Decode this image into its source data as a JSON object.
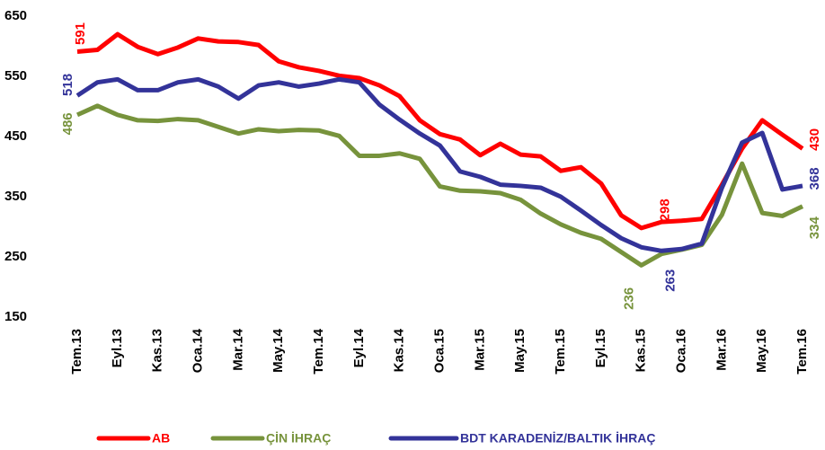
{
  "chart_data": {
    "type": "line",
    "categories": [
      "Tem.13",
      null,
      "Eyl.13",
      null,
      "Kas.13",
      null,
      "Oca.14",
      null,
      "Mar.14",
      null,
      "May.14",
      null,
      "Tem.14",
      null,
      "Eyl.14",
      null,
      "Kas.14",
      null,
      "Oca.15",
      null,
      "Mar.15",
      null,
      "May.15",
      null,
      "Tem.15",
      null,
      "Eyl.15",
      null,
      "Kas.15",
      null,
      "Oca.16",
      null,
      "Mar.16",
      null,
      "May.16",
      null,
      "Tem.16"
    ],
    "series": [
      {
        "name": "AB",
        "color": "#ff0000",
        "values": [
          591,
          594,
          620,
          599,
          587,
          598,
          613,
          608,
          607,
          602,
          575,
          565,
          559,
          551,
          547,
          535,
          517,
          477,
          454,
          445,
          419,
          438,
          420,
          417,
          393,
          399,
          372,
          319,
          298,
          308,
          310,
          313,
          370,
          430,
          477,
          453,
          430
        ]
      },
      {
        "name": "ÇİN İHRAÇ",
        "color": "#77933c",
        "values": [
          486,
          501,
          486,
          477,
          476,
          479,
          477,
          466,
          455,
          462,
          459,
          461,
          460,
          451,
          418,
          418,
          422,
          413,
          367,
          360,
          359,
          356,
          345,
          322,
          304,
          290,
          280,
          258,
          236,
          255,
          262,
          270,
          320,
          405,
          323,
          318,
          334
        ]
      },
      {
        "name": "BDT KARADENİZ/BALTIK İHRAÇ",
        "color": "#333399",
        "values": [
          518,
          540,
          545,
          527,
          527,
          540,
          545,
          533,
          513,
          535,
          540,
          533,
          538,
          545,
          540,
          503,
          478,
          455,
          435,
          392,
          383,
          370,
          368,
          365,
          350,
          327,
          303,
          281,
          266,
          260,
          263,
          272,
          365,
          440,
          456,
          362,
          368
        ]
      }
    ],
    "ylim": [
      150,
      650
    ],
    "yticks": [
      150,
      250,
      350,
      450,
      550,
      650
    ],
    "grid": false,
    "legend": "bottom"
  }
}
